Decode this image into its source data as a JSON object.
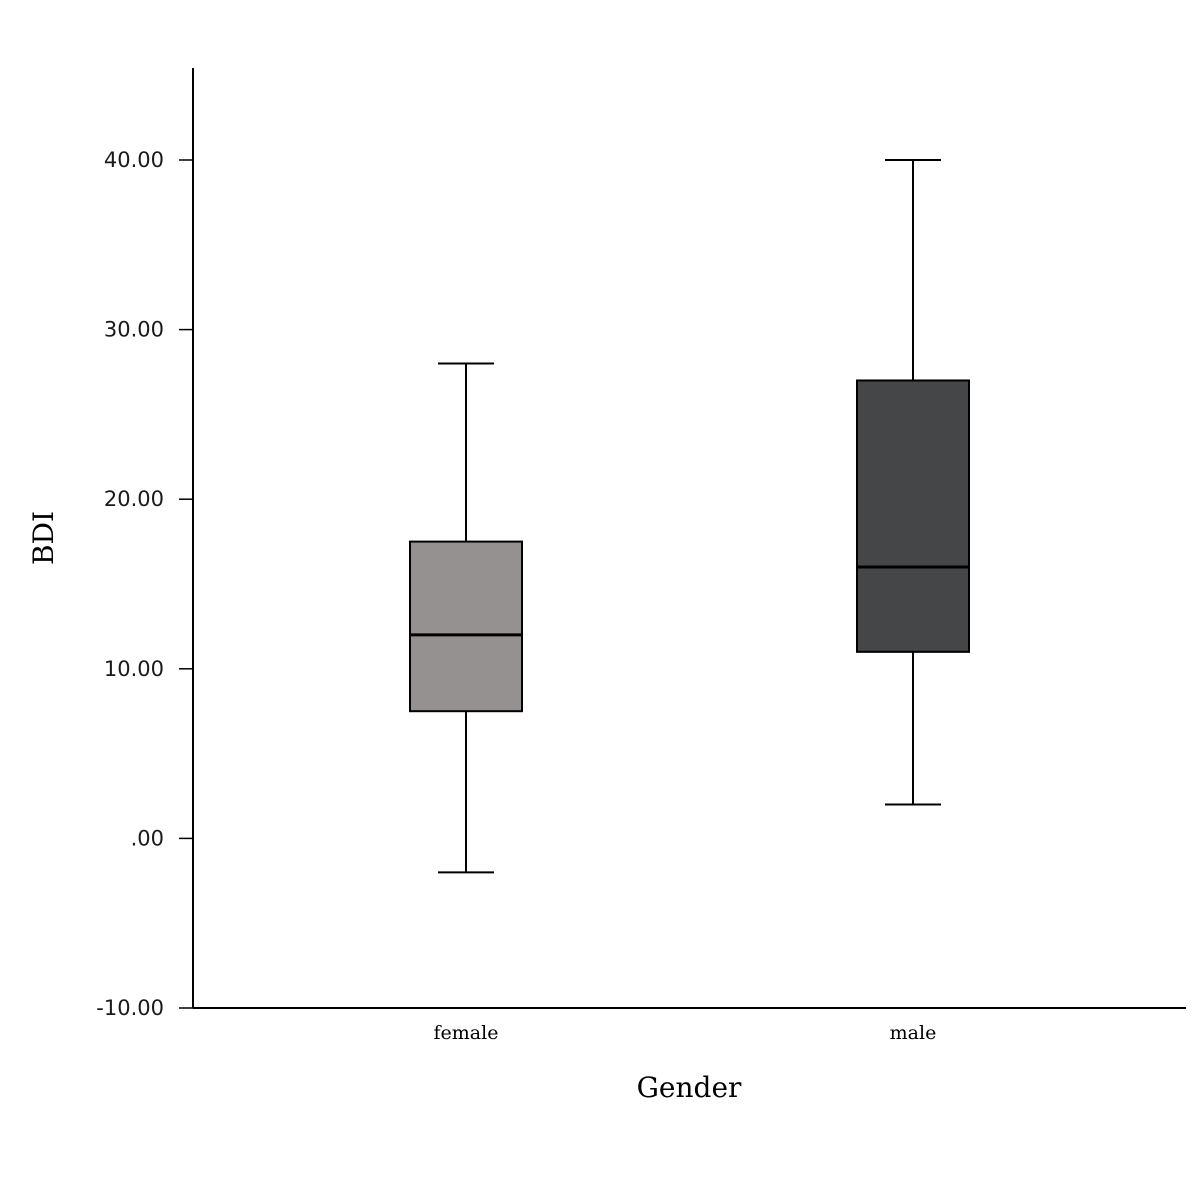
{
  "chart_data": {
    "type": "boxplot",
    "xlabel": "Gender",
    "ylabel": "BDI",
    "ylim": [
      -10,
      45
    ],
    "yticks": [
      -10,
      0,
      10,
      20,
      30,
      40
    ],
    "ytick_labels": [
      "-10.00",
      ".00",
      "10.00",
      "20.00",
      "30.00",
      "40.00"
    ],
    "grid": false,
    "categories": [
      "female",
      "male"
    ],
    "boxes": [
      {
        "category": "female",
        "whisker_low": -2,
        "q1": 7.5,
        "median": 12,
        "q3": 17.5,
        "whisker_high": 28,
        "color": "#959190"
      },
      {
        "category": "male",
        "whisker_low": 2,
        "q1": 11,
        "median": 16,
        "q3": 27,
        "whisker_high": 40,
        "color": "#454647"
      }
    ]
  }
}
